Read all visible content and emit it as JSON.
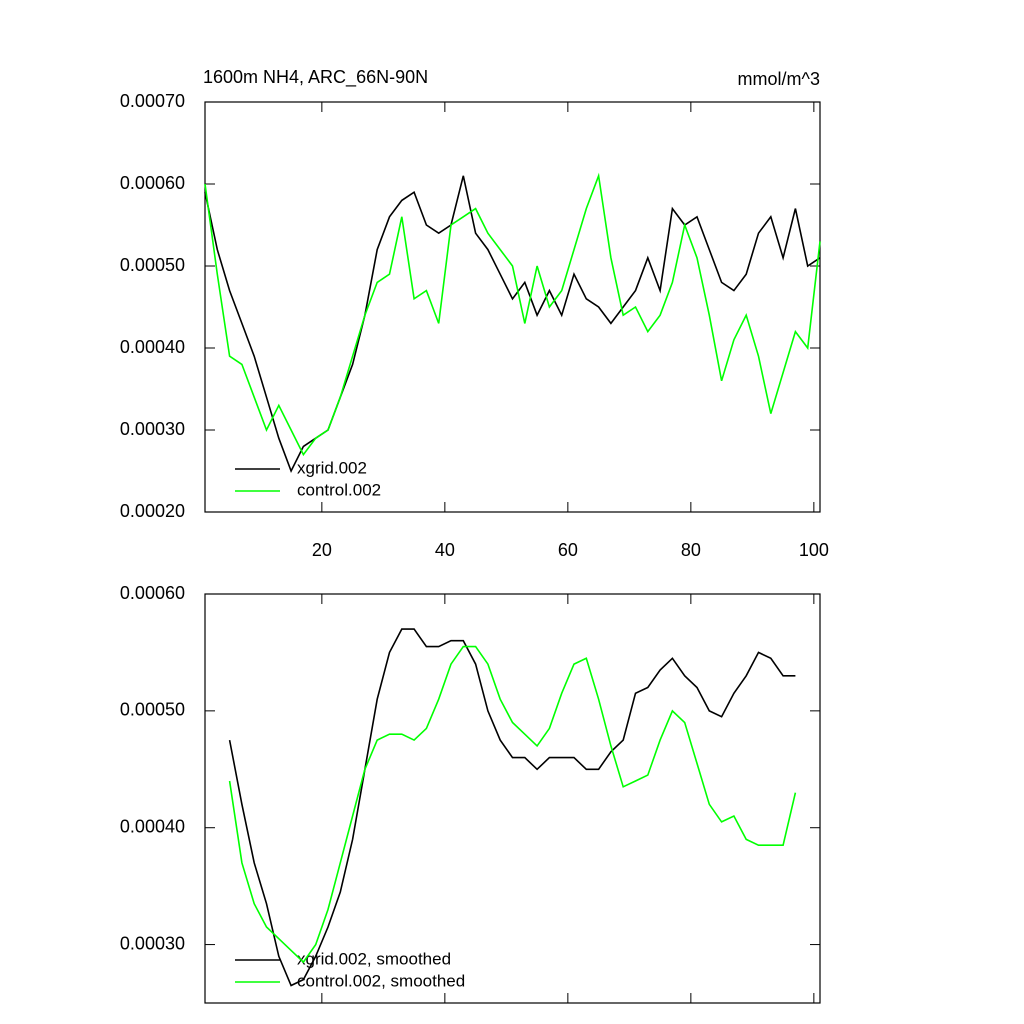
{
  "chart_data": [
    {
      "type": "line",
      "title": "1600m NH4, ARC_66N-90N",
      "units": "mmol/m^3",
      "x": [
        1,
        3,
        5,
        7,
        9,
        11,
        13,
        15,
        17,
        19,
        21,
        23,
        25,
        27,
        29,
        31,
        33,
        35,
        37,
        39,
        41,
        43,
        45,
        47,
        49,
        51,
        53,
        55,
        57,
        59,
        61,
        63,
        65,
        67,
        69,
        71,
        73,
        75,
        77,
        79,
        81,
        83,
        85,
        87,
        89,
        91,
        93,
        95,
        97,
        99,
        101
      ],
      "series": [
        {
          "name": "xgrid.002",
          "color": "#000000",
          "values": [
            0.00059,
            0.00052,
            0.00047,
            0.00043,
            0.00039,
            0.00034,
            0.00029,
            0.00025,
            0.00028,
            0.00029,
            0.0003,
            0.00034,
            0.00038,
            0.00044,
            0.00052,
            0.00056,
            0.00058,
            0.00059,
            0.00055,
            0.00054,
            0.00055,
            0.00061,
            0.00054,
            0.00052,
            0.00049,
            0.00046,
            0.00048,
            0.00044,
            0.00047,
            0.00044,
            0.00049,
            0.00046,
            0.00045,
            0.00043,
            0.00045,
            0.00047,
            0.00051,
            0.00047,
            0.00057,
            0.00055,
            0.00056,
            0.00052,
            0.00048,
            0.00047,
            0.00049,
            0.00054,
            0.00056,
            0.00051,
            0.00057,
            0.0005,
            0.00051
          ]
        },
        {
          "name": "control.002",
          "color": "#00ff00",
          "values": [
            0.0006,
            0.00049,
            0.00039,
            0.00038,
            0.00034,
            0.0003,
            0.00033,
            0.0003,
            0.00027,
            0.00029,
            0.0003,
            0.00034,
            0.00039,
            0.00044,
            0.00048,
            0.00049,
            0.00056,
            0.00046,
            0.00047,
            0.00043,
            0.00055,
            0.00056,
            0.00057,
            0.00054,
            0.00052,
            0.0005,
            0.00043,
            0.0005,
            0.00045,
            0.00047,
            0.00052,
            0.00057,
            0.00061,
            0.00051,
            0.00044,
            0.00045,
            0.00042,
            0.00044,
            0.00048,
            0.00055,
            0.00051,
            0.00044,
            0.00036,
            0.00041,
            0.00044,
            0.00039,
            0.00032,
            0.00037,
            0.00042,
            0.0004,
            0.00053
          ]
        }
      ],
      "xlim": [
        1,
        101
      ],
      "xticks": [
        20,
        40,
        60,
        80,
        100
      ],
      "xtick_labels": true,
      "ylim": [
        0.0002,
        0.0007
      ],
      "yticks": [
        {
          "value": 0.0002,
          "label": "0.00020"
        },
        {
          "value": 0.0003,
          "label": "0.00030"
        },
        {
          "value": 0.0004,
          "label": "0.00040"
        },
        {
          "value": 0.0005,
          "label": "0.00050"
        },
        {
          "value": 0.0006,
          "label": "0.00060"
        },
        {
          "value": 0.0007,
          "label": "0.00070"
        }
      ],
      "legend": "lower-left"
    },
    {
      "type": "line",
      "x": [
        5,
        7,
        9,
        11,
        13,
        15,
        17,
        19,
        21,
        23,
        25,
        27,
        29,
        31,
        33,
        35,
        37,
        39,
        41,
        43,
        45,
        47,
        49,
        51,
        53,
        55,
        57,
        59,
        61,
        63,
        65,
        67,
        69,
        71,
        73,
        75,
        77,
        79,
        81,
        83,
        85,
        87,
        89,
        91,
        93,
        95,
        97
      ],
      "series": [
        {
          "name": "xgrid.002, smoothed",
          "color": "#000000",
          "values": [
            0.000475,
            0.00042,
            0.00037,
            0.000335,
            0.00029,
            0.000265,
            0.00027,
            0.00029,
            0.000315,
            0.000345,
            0.00039,
            0.00045,
            0.00051,
            0.00055,
            0.00057,
            0.00057,
            0.000555,
            0.000555,
            0.00056,
            0.00056,
            0.00054,
            0.0005,
            0.000475,
            0.00046,
            0.00046,
            0.00045,
            0.00046,
            0.00046,
            0.00046,
            0.00045,
            0.00045,
            0.000465,
            0.000475,
            0.000515,
            0.00052,
            0.000535,
            0.000545,
            0.00053,
            0.00052,
            0.0005,
            0.000495,
            0.000515,
            0.00053,
            0.00055,
            0.000545,
            0.00053,
            0.00053
          ]
        },
        {
          "name": "control.002, smoothed",
          "color": "#00ff00",
          "values": [
            0.00044,
            0.00037,
            0.000335,
            0.000315,
            0.000305,
            0.000295,
            0.000285,
            0.0003,
            0.00033,
            0.00037,
            0.00041,
            0.00045,
            0.000475,
            0.00048,
            0.00048,
            0.000475,
            0.000485,
            0.00051,
            0.00054,
            0.000555,
            0.000555,
            0.00054,
            0.00051,
            0.00049,
            0.00048,
            0.00047,
            0.000485,
            0.000515,
            0.00054,
            0.000545,
            0.00051,
            0.00047,
            0.000435,
            0.00044,
            0.000445,
            0.000475,
            0.0005,
            0.00049,
            0.000455,
            0.00042,
            0.000405,
            0.00041,
            0.00039,
            0.000385,
            0.000385,
            0.000385,
            0.00043
          ]
        }
      ],
      "xlim": [
        1,
        101
      ],
      "xticks": [
        20,
        40,
        60,
        80,
        100
      ],
      "xtick_labels": false,
      "ylim": [
        0.00025,
        0.0006
      ],
      "yticks": [
        {
          "value": 0.0003,
          "label": "0.00030"
        },
        {
          "value": 0.0004,
          "label": "0.00040"
        },
        {
          "value": 0.0005,
          "label": "0.00050"
        },
        {
          "value": 0.0006,
          "label": "0.00060"
        }
      ],
      "legend": "lower-left"
    }
  ]
}
